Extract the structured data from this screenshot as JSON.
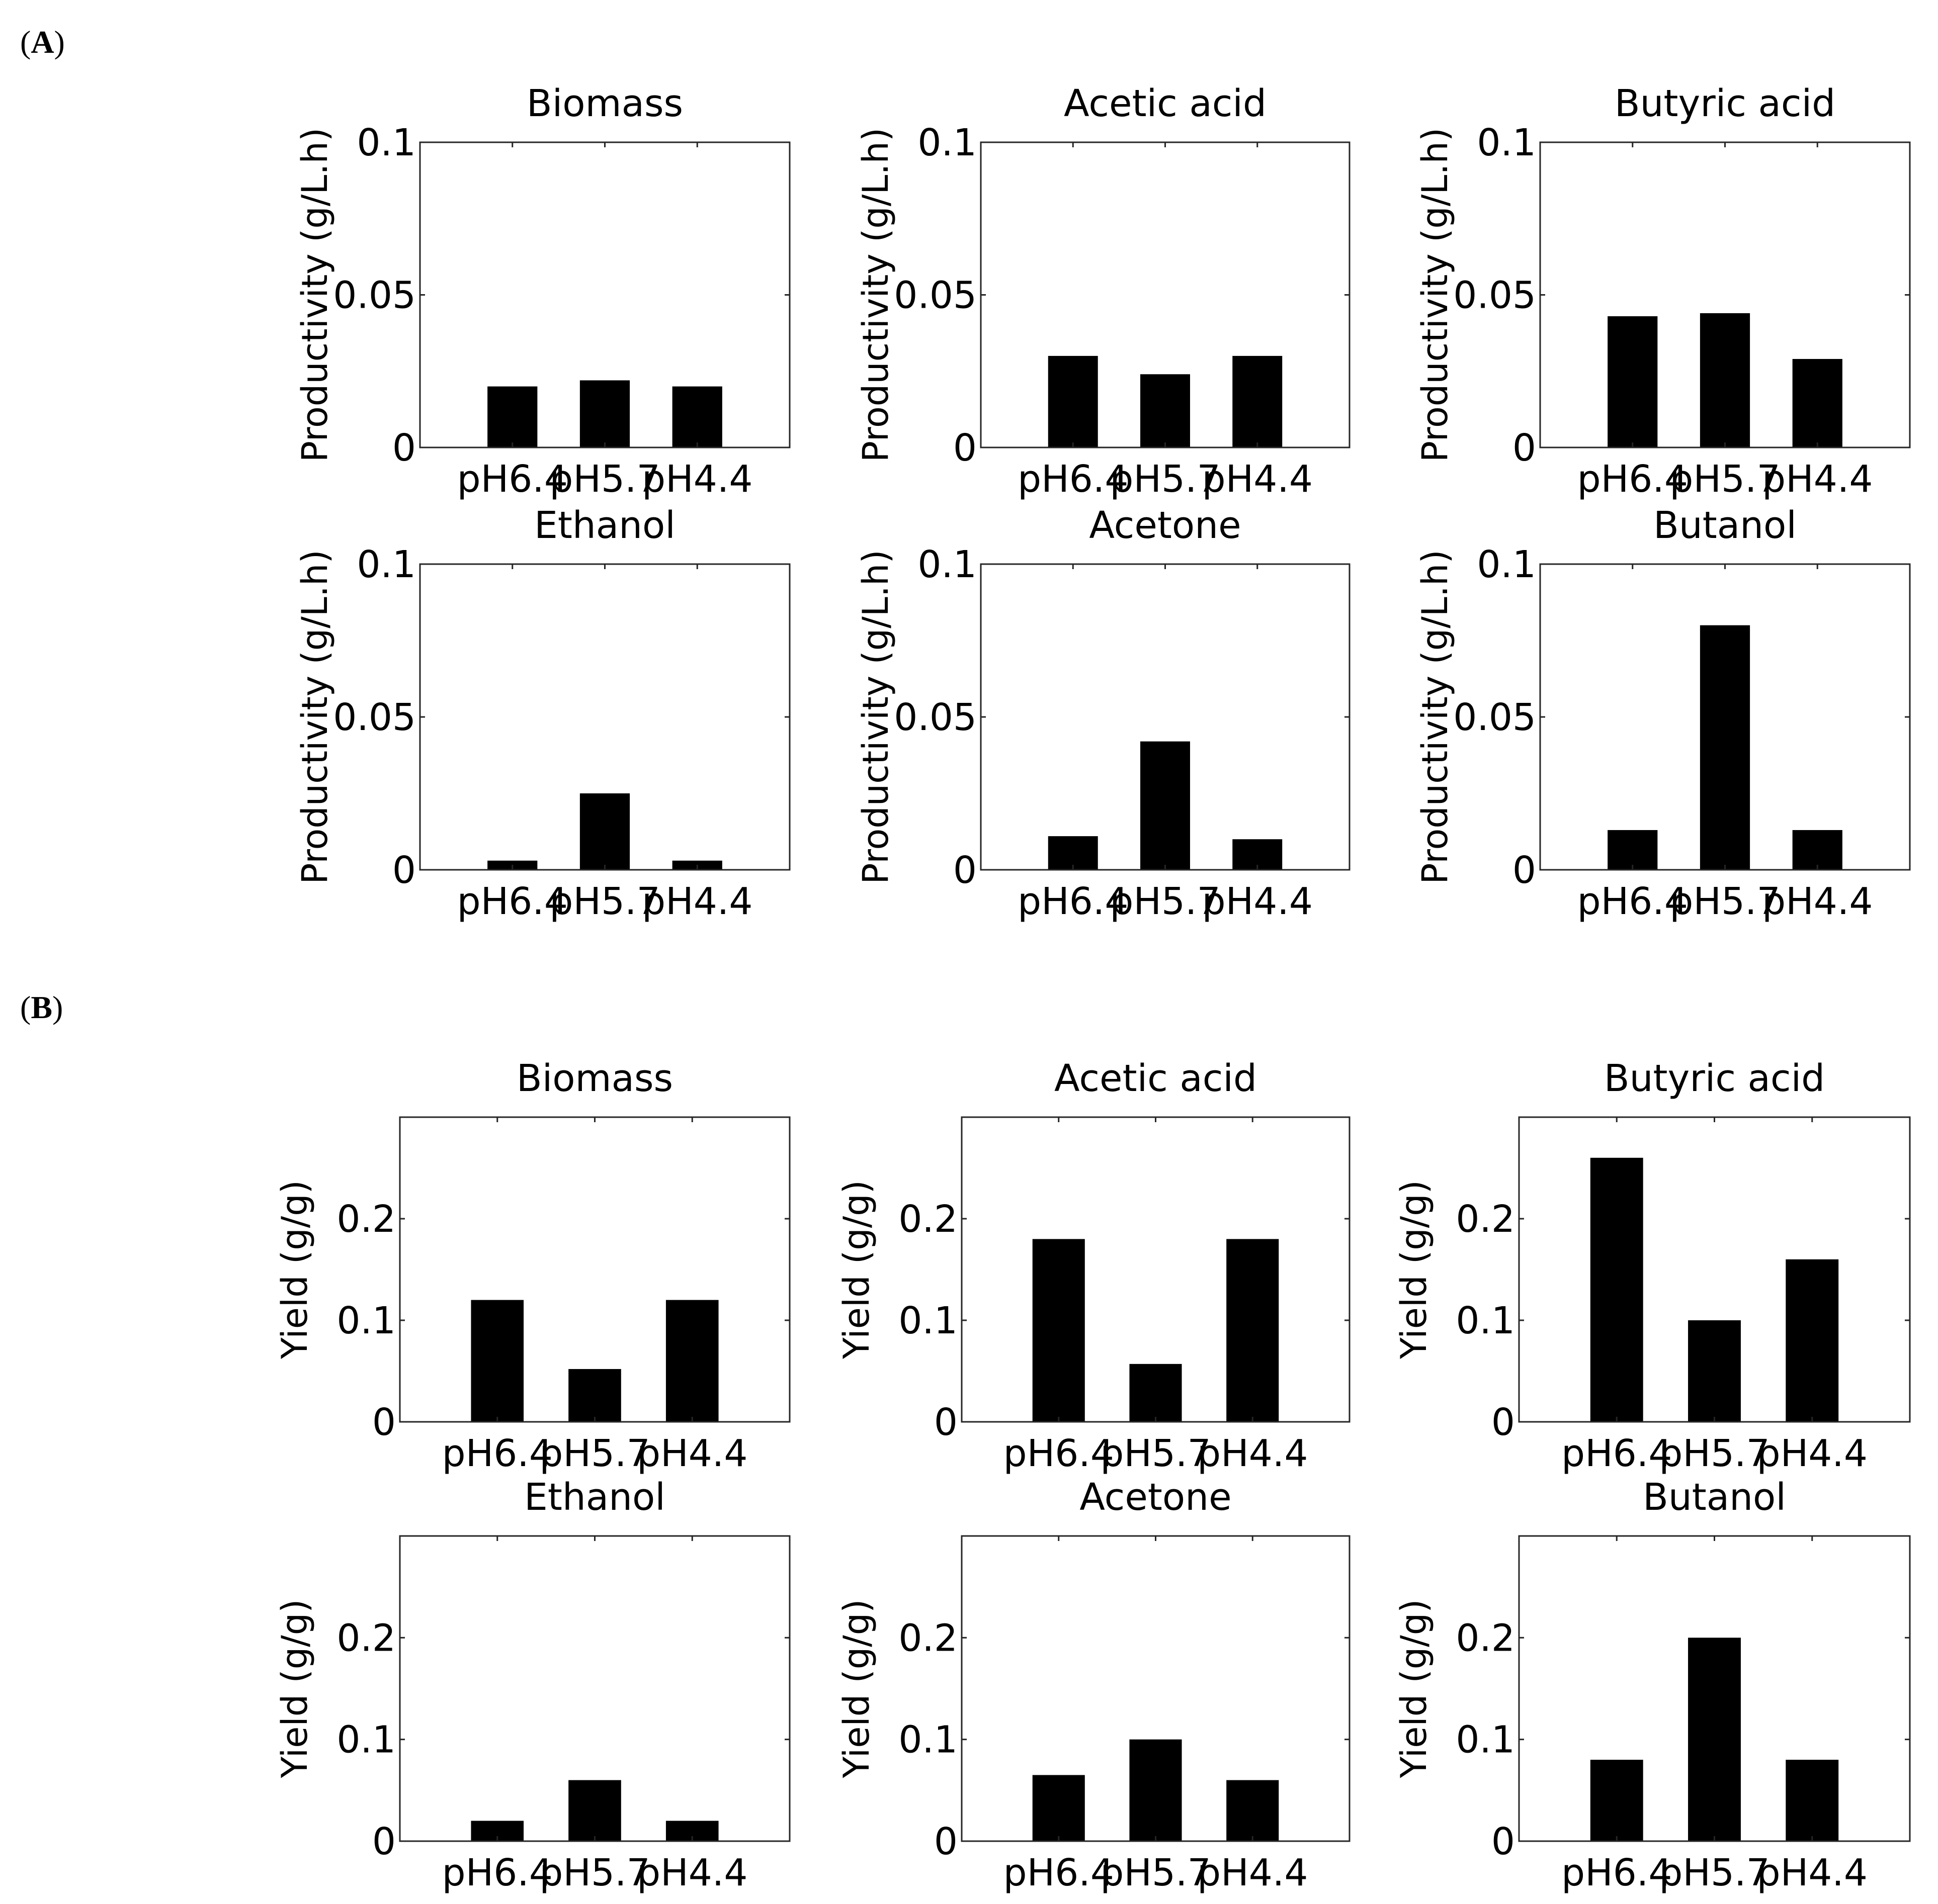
{
  "panels": [
    {
      "label_open": "(",
      "label_letter": "A",
      "label_close": ")"
    },
    {
      "label_open": "(",
      "label_letter": "B",
      "label_close": ")"
    }
  ],
  "colors": {
    "bar": "#000000",
    "axis": "#262626",
    "text": "#000000"
  },
  "chart_data": [
    {
      "type": "bar",
      "panel": "A",
      "title": "Biomass",
      "ylabel": "Productivity (g/L.h)",
      "xlabel": "",
      "categories": [
        "pH6.4",
        "pH5.7",
        "pH4.4"
      ],
      "values": [
        0.02,
        0.022,
        0.02
      ],
      "ylim": [
        0,
        0.1
      ],
      "yticks": [
        0,
        0.05,
        0.1
      ],
      "ytick_labels": [
        "0",
        "0.05",
        "0.1"
      ]
    },
    {
      "type": "bar",
      "panel": "A",
      "title": "Acetic acid",
      "ylabel": "Productivity (g/L.h)",
      "xlabel": "",
      "categories": [
        "pH6.4",
        "pH5.7",
        "pH4.4"
      ],
      "values": [
        0.03,
        0.024,
        0.03
      ],
      "ylim": [
        0,
        0.1
      ],
      "yticks": [
        0,
        0.05,
        0.1
      ],
      "ytick_labels": [
        "0",
        "0.05",
        "0.1"
      ]
    },
    {
      "type": "bar",
      "panel": "A",
      "title": "Butyric acid",
      "ylabel": "Productivity (g/L.h)",
      "xlabel": "",
      "categories": [
        "pH6.4",
        "pH5.7",
        "pH4.4"
      ],
      "values": [
        0.043,
        0.044,
        0.029
      ],
      "ylim": [
        0,
        0.1
      ],
      "yticks": [
        0,
        0.05,
        0.1
      ],
      "ytick_labels": [
        "0",
        "0.05",
        "0.1"
      ]
    },
    {
      "type": "bar",
      "panel": "A",
      "title": "Ethanol",
      "ylabel": "Productivity (g/L.h)",
      "xlabel": "",
      "categories": [
        "pH6.4",
        "pH5.7",
        "pH4.4"
      ],
      "values": [
        0.003,
        0.025,
        0.003
      ],
      "ylim": [
        0,
        0.1
      ],
      "yticks": [
        0,
        0.05,
        0.1
      ],
      "ytick_labels": [
        "0",
        "0.05",
        "0.1"
      ]
    },
    {
      "type": "bar",
      "panel": "A",
      "title": "Acetone",
      "ylabel": "Productivity (g/L.h)",
      "xlabel": "",
      "categories": [
        "pH6.4",
        "pH5.7",
        "pH4.4"
      ],
      "values": [
        0.011,
        0.042,
        0.01
      ],
      "ylim": [
        0,
        0.1
      ],
      "yticks": [
        0,
        0.05,
        0.1
      ],
      "ytick_labels": [
        "0",
        "0.05",
        "0.1"
      ]
    },
    {
      "type": "bar",
      "panel": "A",
      "title": "Butanol",
      "ylabel": "Productivity (g/L.h)",
      "xlabel": "",
      "categories": [
        "pH6.4",
        "pH5.7",
        "pH4.4"
      ],
      "values": [
        0.013,
        0.08,
        0.013
      ],
      "ylim": [
        0,
        0.1
      ],
      "yticks": [
        0,
        0.05,
        0.1
      ],
      "ytick_labels": [
        "0",
        "0.05",
        "0.1"
      ]
    },
    {
      "type": "bar",
      "panel": "B",
      "title": "Biomass",
      "ylabel": "Yield (g/g)",
      "xlabel": "",
      "categories": [
        "pH6.4",
        "pH5.7",
        "pH4.4"
      ],
      "values": [
        0.12,
        0.052,
        0.12
      ],
      "ylim": [
        0,
        0.3
      ],
      "yticks": [
        0,
        0.1,
        0.2
      ],
      "ytick_labels": [
        "0",
        "0.1",
        "0.2"
      ]
    },
    {
      "type": "bar",
      "panel": "B",
      "title": "Acetic acid",
      "ylabel": "Yield (g/g)",
      "xlabel": "",
      "categories": [
        "pH6.4",
        "pH5.7",
        "pH4.4"
      ],
      "values": [
        0.18,
        0.057,
        0.18
      ],
      "ylim": [
        0,
        0.3
      ],
      "yticks": [
        0,
        0.1,
        0.2
      ],
      "ytick_labels": [
        "0",
        "0.1",
        "0.2"
      ]
    },
    {
      "type": "bar",
      "panel": "B",
      "title": "Butyric acid",
      "ylabel": "Yield (g/g)",
      "xlabel": "",
      "categories": [
        "pH6.4",
        "pH5.7",
        "pH4.4"
      ],
      "values": [
        0.26,
        0.1,
        0.16
      ],
      "ylim": [
        0,
        0.3
      ],
      "yticks": [
        0,
        0.1,
        0.2
      ],
      "ytick_labels": [
        "0",
        "0.1",
        "0.2"
      ]
    },
    {
      "type": "bar",
      "panel": "B",
      "title": "Ethanol",
      "ylabel": "Yield (g/g)",
      "xlabel": "",
      "categories": [
        "pH6.4",
        "pH5.7",
        "pH4.4"
      ],
      "values": [
        0.02,
        0.06,
        0.02
      ],
      "ylim": [
        0,
        0.3
      ],
      "yticks": [
        0,
        0.1,
        0.2
      ],
      "ytick_labels": [
        "0",
        "0.1",
        "0.2"
      ]
    },
    {
      "type": "bar",
      "panel": "B",
      "title": "Acetone",
      "ylabel": "Yield (g/g)",
      "xlabel": "",
      "categories": [
        "pH6.4",
        "pH5.7",
        "pH4.4"
      ],
      "values": [
        0.065,
        0.1,
        0.06
      ],
      "ylim": [
        0,
        0.3
      ],
      "yticks": [
        0,
        0.1,
        0.2
      ],
      "ytick_labels": [
        "0",
        "0.1",
        "0.2"
      ]
    },
    {
      "type": "bar",
      "panel": "B",
      "title": "Butanol",
      "ylabel": "Yield (g/g)",
      "xlabel": "",
      "categories": [
        "pH6.4",
        "pH5.7",
        "pH4.4"
      ],
      "values": [
        0.08,
        0.2,
        0.08
      ],
      "ylim": [
        0,
        0.3
      ],
      "yticks": [
        0,
        0.1,
        0.2
      ],
      "ytick_labels": [
        "0",
        "0.1",
        "0.2"
      ]
    }
  ]
}
